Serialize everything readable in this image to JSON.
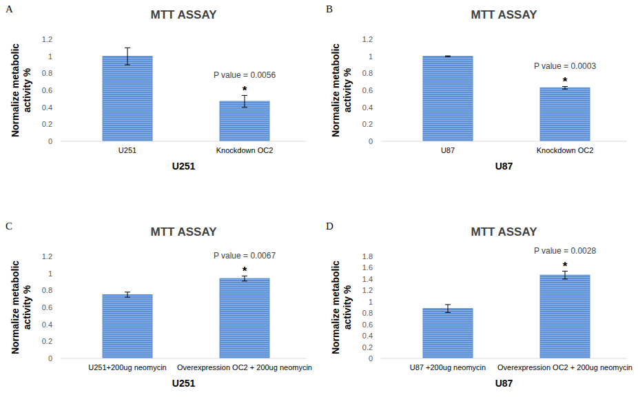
{
  "chart_data": [
    {
      "panel": "A",
      "type": "bar",
      "title": "MTT ASSAY",
      "x_label": "U251",
      "y_label": "Normalize metabolic activity %",
      "categories": [
        "U251",
        "Knockdown OC2"
      ],
      "values": [
        1.0,
        0.47
      ],
      "errors": [
        0.1,
        0.07
      ],
      "color": "#5b8fd6",
      "ylim": [
        0,
        1.2
      ],
      "yticks": [
        0,
        0.2,
        0.4,
        0.6,
        0.8,
        1,
        1.2
      ],
      "grid": false,
      "annotations": [
        "P value = 0.0056",
        "*"
      ]
    },
    {
      "panel": "B",
      "type": "bar",
      "title": "MTT ASSAY",
      "x_label": "U87",
      "y_label": "Normalize metabolic activity %",
      "categories": [
        "U87",
        "Knockdown OC2"
      ],
      "values": [
        1.0,
        0.63
      ],
      "errors": [
        0.005,
        0.015
      ],
      "color": "#5b8fd6",
      "ylim": [
        0,
        1.2
      ],
      "yticks": [
        0,
        0.2,
        0.4,
        0.6,
        0.8,
        1,
        1.2
      ],
      "grid": false,
      "annotations": [
        "P value = 0.0003",
        "*"
      ]
    },
    {
      "panel": "C",
      "type": "bar",
      "title": "MTT ASSAY",
      "x_label": "U251",
      "y_label": "Normalize metabolic activity %",
      "categories": [
        "U251+200ug neomycin",
        "Overexpression OC2 + 200ug neomycin"
      ],
      "values": [
        0.75,
        0.94
      ],
      "errors": [
        0.03,
        0.03
      ],
      "color": "#5b8fd6",
      "ylim": [
        0,
        1.2
      ],
      "yticks": [
        0,
        0.2,
        0.4,
        0.6,
        0.8,
        1,
        1.2
      ],
      "grid": false,
      "annotations": [
        "P value = 0.0067",
        "*"
      ]
    },
    {
      "panel": "D",
      "type": "bar",
      "title": "MTT ASSAY",
      "x_label": "U87",
      "y_label": "Normalize metabolic activity %",
      "categories": [
        "U87 +200ug neomycin",
        "Overexpression OC2 + 200ug neomycin"
      ],
      "values": [
        0.88,
        1.47
      ],
      "errors": [
        0.07,
        0.07
      ],
      "color": "#5b8fd6",
      "ylim": [
        0,
        1.8
      ],
      "yticks": [
        0,
        0.2,
        0.4,
        0.6,
        0.8,
        1,
        1.2,
        1.4,
        1.6,
        1.8
      ],
      "grid": false,
      "annotations": [
        "P value = 0.0028",
        "*"
      ]
    }
  ]
}
